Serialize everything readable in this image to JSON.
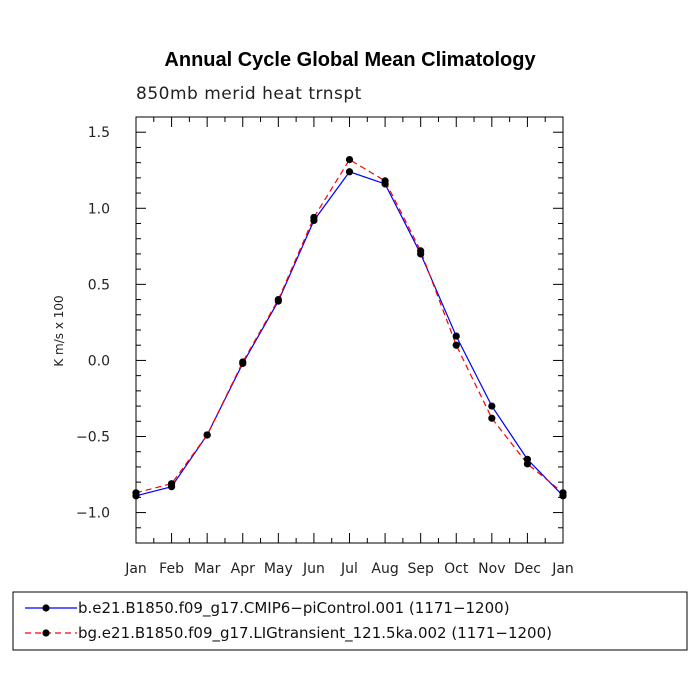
{
  "chart_data": {
    "type": "line",
    "title": "Annual Cycle Global Mean Climatology",
    "subtitle": "850mb merid heat trnspt",
    "xlabel": "",
    "ylabel": "K m/s x 100",
    "categories": [
      "Jan",
      "Feb",
      "Mar",
      "Apr",
      "May",
      "Jun",
      "Jul",
      "Aug",
      "Sep",
      "Oct",
      "Nov",
      "Dec",
      "Jan"
    ],
    "yticks": [
      -1.0,
      -0.5,
      0.0,
      0.5,
      1.0,
      1.5
    ],
    "ytick_labels": [
      "−1.0",
      "−0.5",
      "0.0",
      "0.5",
      "1.0",
      "1.5"
    ],
    "ylim": [
      -1.2,
      1.6
    ],
    "grid": false,
    "legend_position": "bottom",
    "series": [
      {
        "name": "b.e21.B1850.f09_g17.CMIP6−piControl.001 (1171−1200)",
        "color": "#0000ff",
        "style": "solid",
        "values": [
          -0.89,
          -0.83,
          -0.49,
          -0.02,
          0.39,
          0.92,
          1.24,
          1.16,
          0.7,
          0.16,
          -0.3,
          -0.65,
          -0.89
        ]
      },
      {
        "name": "bg.e21.B1850.f09_g17.LIGtransient_121.5ka.002 (1171−1200)",
        "color": "#ff0000",
        "style": "dashed",
        "values": [
          -0.87,
          -0.81,
          -0.49,
          -0.01,
          0.4,
          0.94,
          1.32,
          1.18,
          0.72,
          0.1,
          -0.38,
          -0.68,
          -0.87
        ]
      }
    ]
  }
}
